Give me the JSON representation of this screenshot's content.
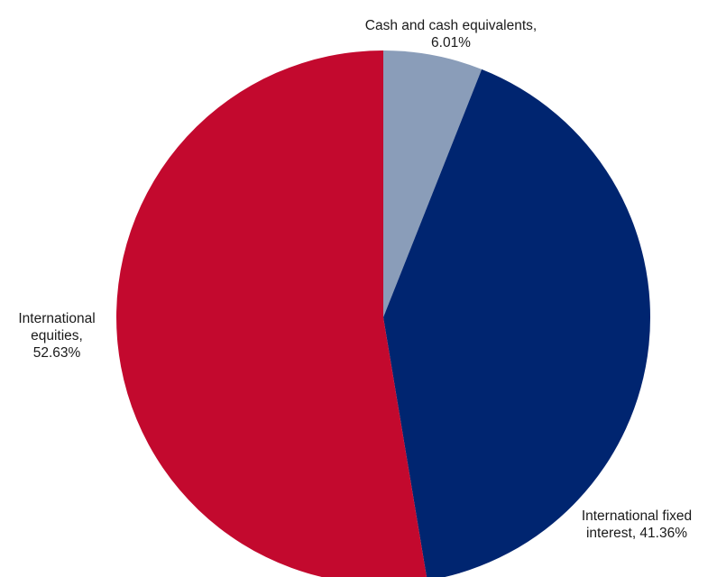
{
  "chart_data": {
    "type": "pie",
    "title": "",
    "start_angle_deg": 0,
    "direction": "clockwise",
    "slices": [
      {
        "name": "Cash and cash equivalents",
        "value": 6.01,
        "color": "#8a9db9",
        "label_lines": [
          "Cash and cash equivalents,",
          "6.01%"
        ]
      },
      {
        "name": "International fixed interest",
        "value": 41.36,
        "color": "#002570",
        "label_lines": [
          "International fixed",
          "interest, 41.36%"
        ]
      },
      {
        "name": "International equities",
        "value": 52.63,
        "color": "#c3092e",
        "label_lines": [
          "International",
          "equities,",
          "52.63%"
        ]
      }
    ]
  }
}
